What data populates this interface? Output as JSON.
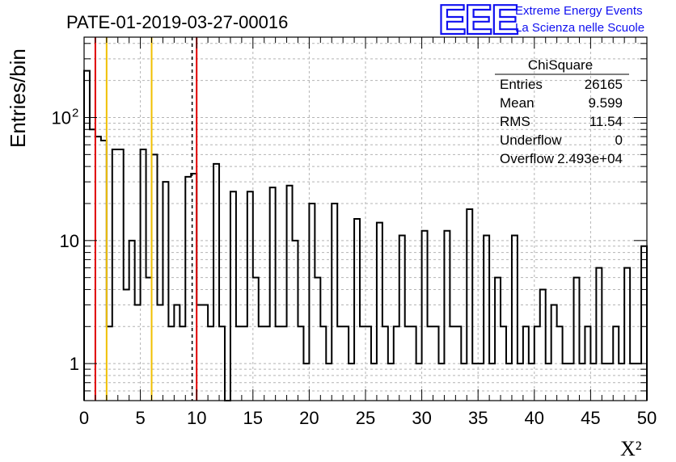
{
  "header": {
    "title": "PATE-01-2019-03-27-00016",
    "logo_letters": "EEE",
    "logo_line1": "Extreme Energy Events",
    "logo_line2": "La Scienza nelle Scuole"
  },
  "stats": {
    "name": "ChiSquare",
    "rows": [
      {
        "label": "Entries",
        "value": "26165"
      },
      {
        "label": "Mean",
        "value": "9.599"
      },
      {
        "label": "RMS",
        "value": "11.54"
      },
      {
        "label": "Underflow",
        "value": "0"
      },
      {
        "label": "Overflow",
        "value": "2.493e+04"
      }
    ]
  },
  "chart_data": {
    "type": "histogram",
    "title": "PATE-01-2019-03-27-00016",
    "xlabel": "X²",
    "ylabel": "Entries/bin",
    "xlim": [
      0,
      50
    ],
    "ylim": [
      0.5,
      450
    ],
    "yscale": "log",
    "bin_width": 0.5,
    "x_ticks": [
      "0",
      "5",
      "10",
      "15",
      "20",
      "25",
      "30",
      "35",
      "40",
      "45",
      "50"
    ],
    "y_ticks": [
      {
        "value": 1,
        "label": "1"
      },
      {
        "value": 10,
        "label": "10"
      },
      {
        "value": 100,
        "label": "10",
        "exponent": "2"
      }
    ],
    "grid": true,
    "counts": [
      240,
      80,
      70,
      65,
      2,
      55,
      55,
      4,
      10,
      3,
      55,
      5,
      50,
      3,
      30,
      2,
      3,
      2,
      33,
      35,
      3,
      3,
      2,
      42,
      2,
      0,
      25,
      2,
      2,
      25,
      5,
      2,
      2,
      27,
      2,
      2,
      28,
      10,
      2,
      1,
      20,
      5,
      2,
      1,
      20,
      2,
      2,
      1,
      15,
      2,
      2,
      1,
      14,
      2,
      1,
      2,
      11,
      2,
      2,
      1,
      12,
      2,
      2,
      1,
      12,
      2,
      2,
      1,
      18,
      1,
      1,
      11,
      1,
      5,
      2,
      1,
      11,
      1,
      2,
      1,
      2,
      4,
      1,
      3,
      2,
      1,
      1,
      5,
      1,
      2,
      1,
      6,
      1,
      1,
      2,
      1,
      6,
      1,
      1,
      9
    ],
    "vertical_lines": [
      {
        "x": 1,
        "color": "#e00000",
        "style": "solid"
      },
      {
        "x": 2,
        "color": "#f0c000",
        "style": "solid"
      },
      {
        "x": 6,
        "color": "#f0c000",
        "style": "solid"
      },
      {
        "x": 9.6,
        "color": "#000000",
        "style": "dashed"
      },
      {
        "x": 10,
        "color": "#e00000",
        "style": "solid"
      }
    ]
  }
}
